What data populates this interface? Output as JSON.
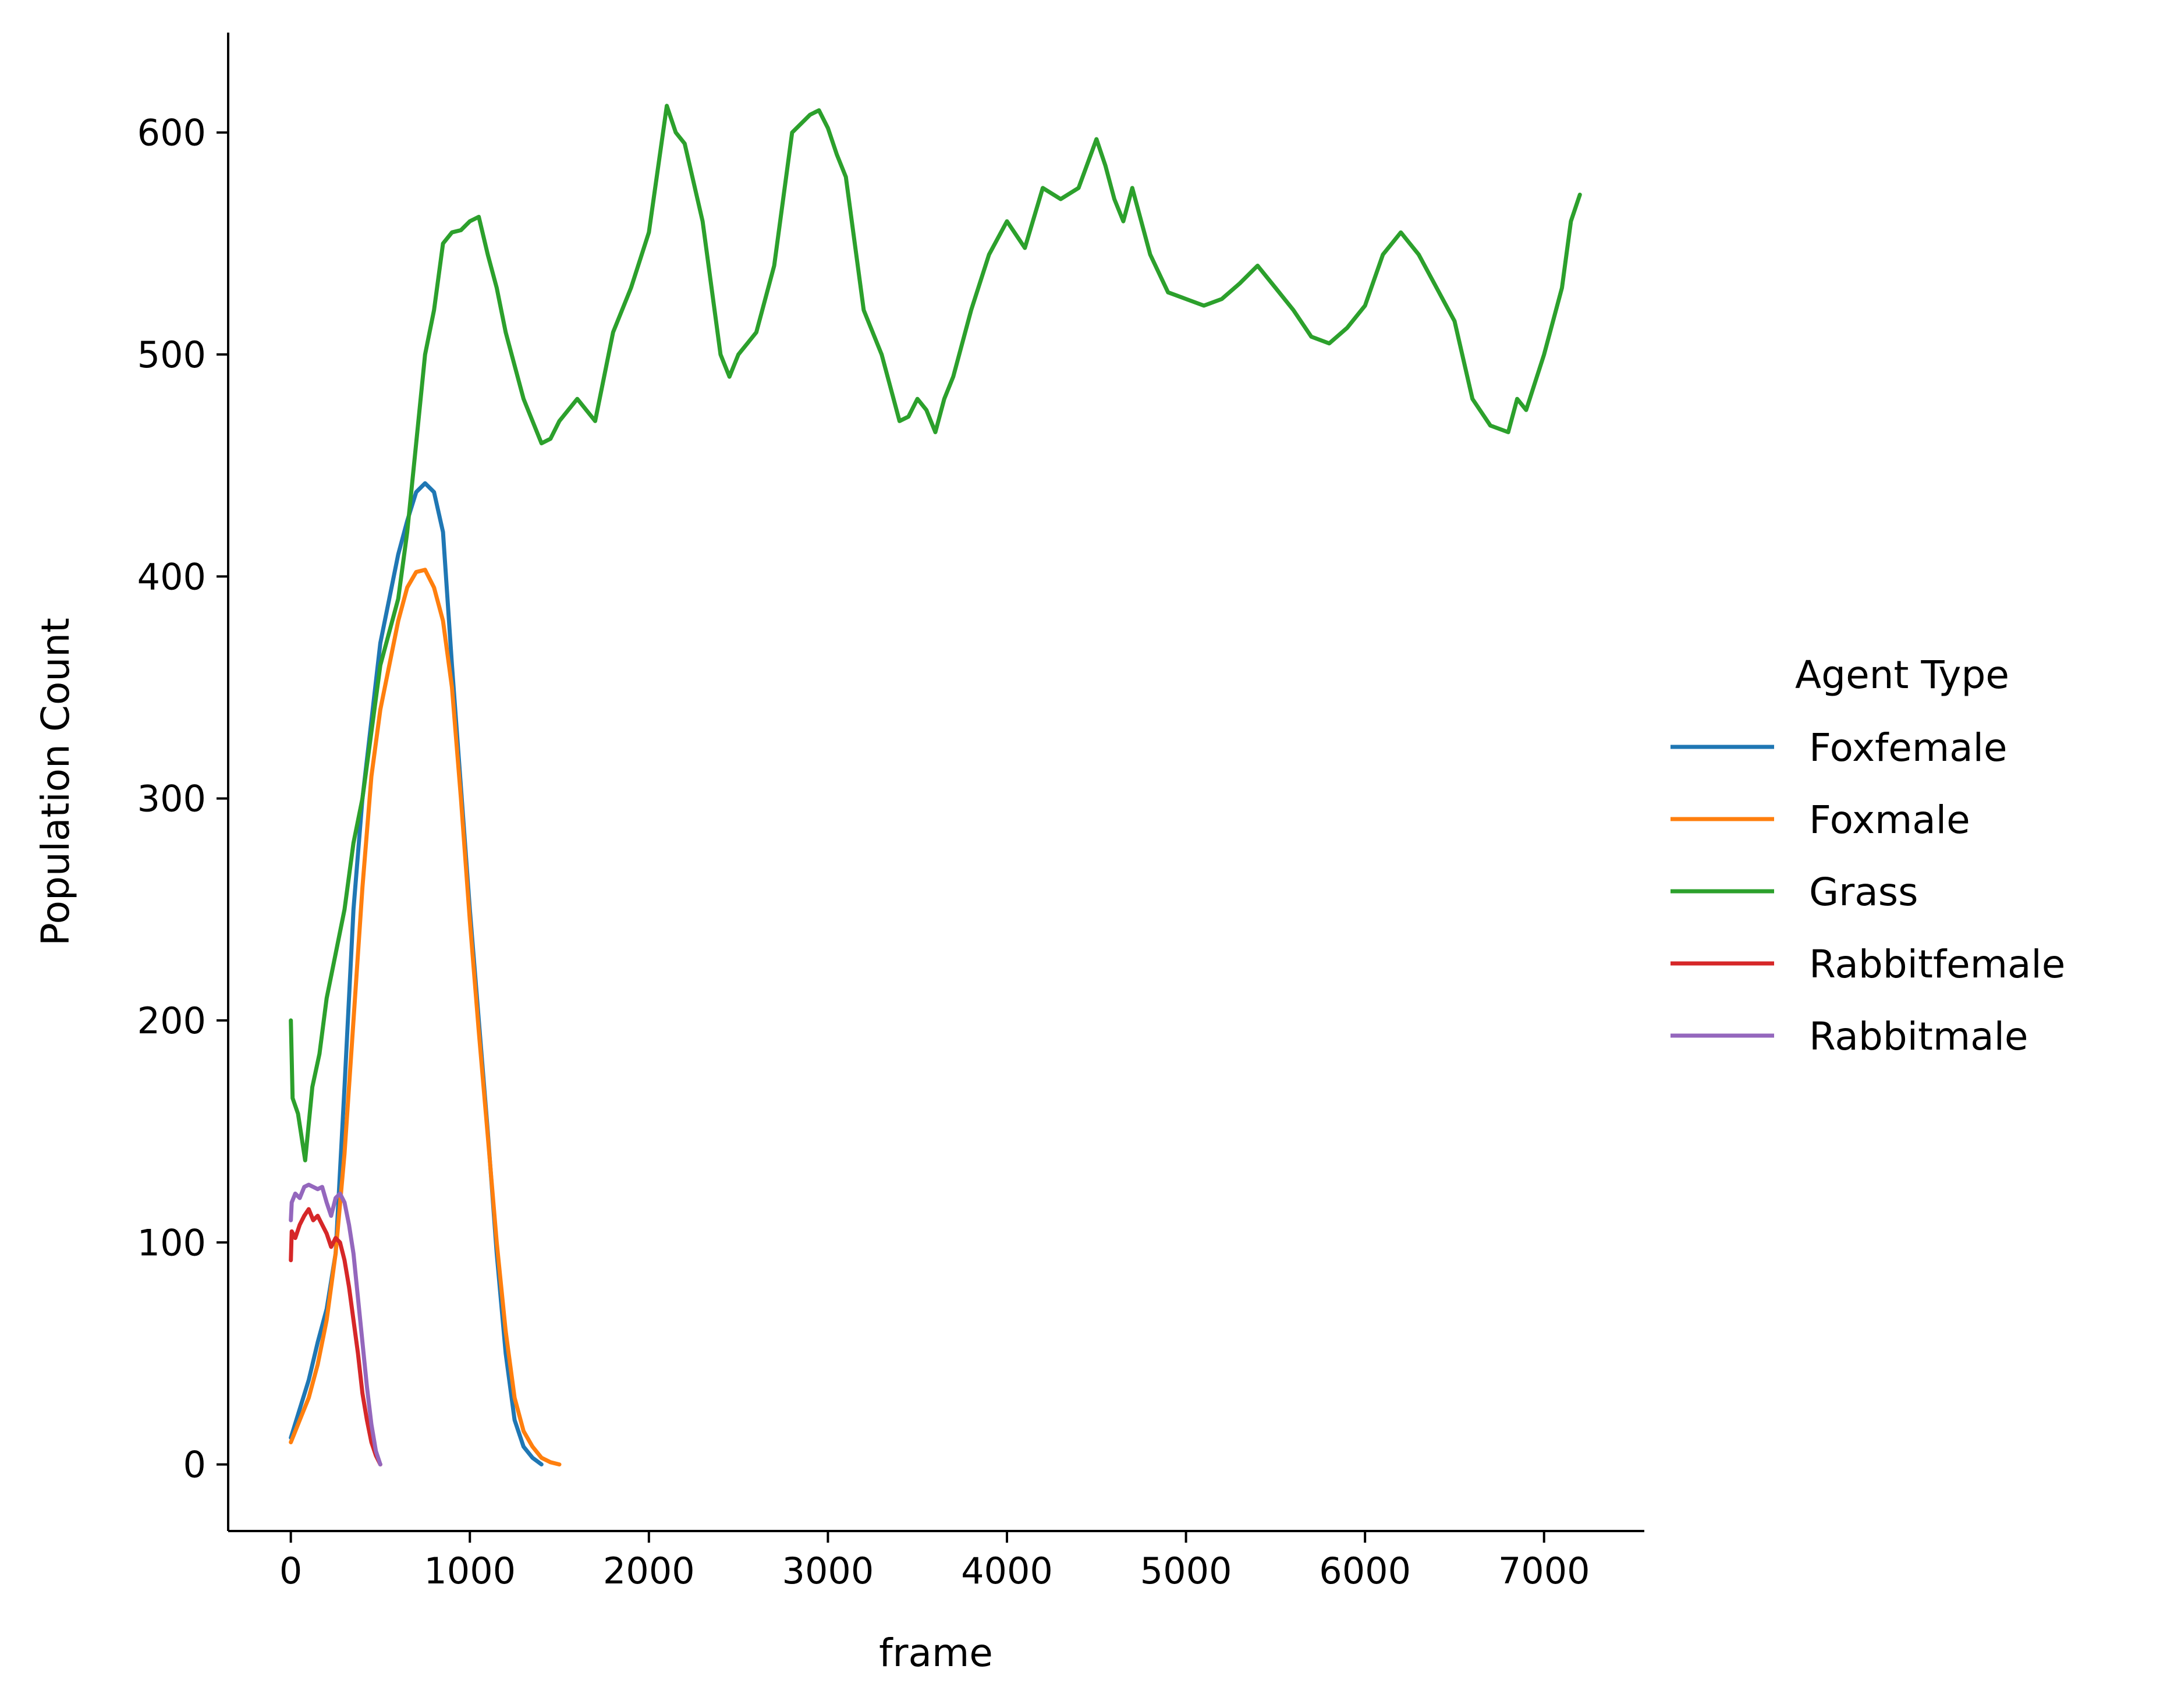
{
  "chart_data": {
    "type": "line",
    "title": "",
    "xlabel": "frame",
    "ylabel": "Population Count",
    "xlim": [
      -350,
      7560
    ],
    "ylim": [
      -30,
      645
    ],
    "xticks": [
      0,
      1000,
      2000,
      3000,
      4000,
      5000,
      6000,
      7000
    ],
    "yticks": [
      0,
      100,
      200,
      300,
      400,
      500,
      600
    ],
    "xtick_labels": [
      "0",
      "1000",
      "2000",
      "3000",
      "4000",
      "5000",
      "6000",
      "7000"
    ],
    "ytick_labels": [
      "0",
      "100",
      "200",
      "300",
      "400",
      "500",
      "600"
    ],
    "grid": false,
    "legend": {
      "title": "Agent Type",
      "placement": "right"
    },
    "series": [
      {
        "name": "Foxfemale",
        "color": "#1f77b4",
        "x": [
          0,
          50,
          100,
          150,
          200,
          250,
          300,
          350,
          400,
          450,
          500,
          550,
          600,
          650,
          700,
          750,
          800,
          850,
          900,
          950,
          1000,
          1050,
          1100,
          1150,
          1200,
          1250,
          1300,
          1350,
          1400
        ],
        "y": [
          12,
          25,
          38,
          55,
          70,
          95,
          170,
          250,
          300,
          335,
          370,
          390,
          410,
          425,
          438,
          442,
          438,
          420,
          360,
          305,
          250,
          200,
          150,
          95,
          50,
          20,
          8,
          3,
          0
        ]
      },
      {
        "name": "Foxmale",
        "color": "#ff7f0e",
        "x": [
          0,
          50,
          100,
          150,
          200,
          250,
          300,
          350,
          400,
          450,
          500,
          550,
          600,
          650,
          700,
          750,
          800,
          850,
          900,
          950,
          1000,
          1050,
          1100,
          1150,
          1200,
          1250,
          1300,
          1350,
          1400,
          1450,
          1500
        ],
        "y": [
          10,
          20,
          30,
          45,
          65,
          95,
          140,
          200,
          260,
          310,
          340,
          360,
          380,
          395,
          402,
          403,
          395,
          380,
          350,
          300,
          245,
          195,
          148,
          100,
          60,
          30,
          15,
          8,
          3,
          1,
          0
        ]
      },
      {
        "name": "Grass",
        "color": "#2ca02c",
        "x": [
          0,
          10,
          40,
          80,
          120,
          160,
          200,
          250,
          300,
          350,
          400,
          450,
          500,
          550,
          600,
          650,
          700,
          750,
          800,
          850,
          900,
          950,
          1000,
          1050,
          1100,
          1150,
          1200,
          1300,
          1400,
          1450,
          1500,
          1600,
          1700,
          1800,
          1900,
          2000,
          2100,
          2150,
          2200,
          2300,
          2400,
          2450,
          2500,
          2550,
          2600,
          2700,
          2800,
          2900,
          2950,
          3000,
          3050,
          3100,
          3200,
          3300,
          3400,
          3450,
          3500,
          3550,
          3600,
          3650,
          3700,
          3800,
          3900,
          4000,
          4100,
          4200,
          4300,
          4400,
          4500,
          4550,
          4600,
          4650,
          4700,
          4800,
          4900,
          5000,
          5100,
          5200,
          5300,
          5400,
          5500,
          5600,
          5700,
          5800,
          5900,
          6000,
          6100,
          6200,
          6300,
          6400,
          6500,
          6600,
          6700,
          6800,
          6850,
          6900,
          7000,
          7100,
          7150,
          7200
        ],
        "y": [
          200,
          165,
          158,
          137,
          170,
          185,
          210,
          230,
          250,
          280,
          300,
          330,
          360,
          375,
          390,
          420,
          460,
          500,
          520,
          550,
          555,
          556,
          560,
          562,
          545,
          530,
          510,
          480,
          460,
          462,
          470,
          480,
          470,
          510,
          530,
          555,
          612,
          600,
          595,
          560,
          500,
          490,
          500,
          505,
          510,
          540,
          600,
          608,
          610,
          602,
          590,
          580,
          520,
          500,
          470,
          472,
          480,
          475,
          465,
          480,
          490,
          520,
          545,
          560,
          548,
          575,
          570,
          575,
          597,
          585,
          570,
          560,
          575,
          545,
          528,
          525,
          522,
          525,
          532,
          540,
          530,
          520,
          508,
          505,
          512,
          522,
          545,
          555,
          545,
          530,
          515,
          480,
          468,
          465,
          480,
          475,
          500,
          530,
          560,
          572
        ]
      },
      {
        "name": "Rabbitfemale",
        "color": "#d62728",
        "x": [
          0,
          5,
          25,
          50,
          75,
          100,
          125,
          150,
          175,
          200,
          225,
          250,
          275,
          300,
          325,
          350,
          375,
          400,
          425,
          450,
          475,
          500
        ],
        "y": [
          92,
          105,
          102,
          108,
          112,
          115,
          110,
          112,
          108,
          104,
          98,
          102,
          100,
          92,
          80,
          65,
          50,
          32,
          20,
          10,
          4,
          0
        ]
      },
      {
        "name": "Rabbitmale",
        "color": "#9467bd",
        "x": [
          0,
          5,
          25,
          50,
          75,
          100,
          125,
          150,
          175,
          200,
          225,
          250,
          275,
          300,
          325,
          350,
          375,
          400,
          425,
          450,
          475,
          500
        ],
        "y": [
          110,
          118,
          122,
          120,
          125,
          126,
          125,
          124,
          125,
          118,
          112,
          120,
          122,
          118,
          108,
          95,
          75,
          55,
          35,
          18,
          6,
          0
        ]
      }
    ]
  }
}
